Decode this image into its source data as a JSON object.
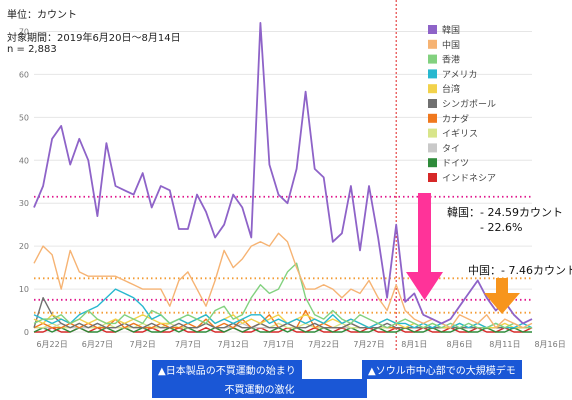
{
  "header": {
    "unit": "単位：カウント",
    "period": "対象期間：2019年6月20日〜8月14日",
    "n": "n = 2,883"
  },
  "notes": {
    "boycott_start": "▲日本製品の不買運動の始まり",
    "boycott_intensify": "不買運動の激化",
    "seoul_demo": "▲ソウル市中心部での大規模デモ"
  },
  "annotations": {
    "korea_drop": "韓国：- 24.59カウント",
    "korea_pct": "- 22.6%",
    "china_drop": "中国：- 7.46カウント"
  },
  "chart_data": {
    "type": "line",
    "x": [
      "2019-06-20",
      "2019-06-21",
      "2019-06-22",
      "2019-06-23",
      "2019-06-24",
      "2019-06-25",
      "2019-06-26",
      "2019-06-27",
      "2019-06-28",
      "2019-06-29",
      "2019-06-30",
      "2019-07-01",
      "2019-07-02",
      "2019-07-03",
      "2019-07-04",
      "2019-07-05",
      "2019-07-06",
      "2019-07-07",
      "2019-07-08",
      "2019-07-09",
      "2019-07-10",
      "2019-07-11",
      "2019-07-12",
      "2019-07-13",
      "2019-07-14",
      "2019-07-15",
      "2019-07-16",
      "2019-07-17",
      "2019-07-18",
      "2019-07-19",
      "2019-07-20",
      "2019-07-21",
      "2019-07-22",
      "2019-07-23",
      "2019-07-24",
      "2019-07-25",
      "2019-07-26",
      "2019-07-27",
      "2019-07-28",
      "2019-07-29",
      "2019-07-30",
      "2019-07-31",
      "2019-08-01",
      "2019-08-02",
      "2019-08-03",
      "2019-08-04",
      "2019-08-05",
      "2019-08-06",
      "2019-08-07",
      "2019-08-08",
      "2019-08-09",
      "2019-08-10",
      "2019-08-11",
      "2019-08-12",
      "2019-08-13",
      "2019-08-14"
    ],
    "x_ticks": [
      "6月22日",
      "6月27日",
      "7月2日",
      "7月7日",
      "7月12日",
      "7月17日",
      "7月22日",
      "7月27日",
      "8月1日",
      "8月6日",
      "8月11日",
      "8月16日"
    ],
    "ylim": [
      0,
      75
    ],
    "y_ticks": [
      0,
      10,
      20,
      30,
      40,
      50,
      60,
      70
    ],
    "grid": true,
    "legend_position": "top-right",
    "series": [
      {
        "name": "韓国",
        "color": "#8e63c8",
        "values": [
          29,
          34,
          45,
          48,
          39,
          45,
          40,
          27,
          44,
          34,
          33,
          32,
          37,
          29,
          34,
          33,
          24,
          24,
          32,
          28,
          22,
          25,
          32,
          29,
          22,
          72,
          39,
          32,
          30,
          38,
          56,
          38,
          36,
          21,
          23,
          34,
          19,
          34,
          22,
          8,
          25,
          7,
          9,
          4,
          3,
          2,
          3,
          6,
          9,
          12,
          8,
          5,
          7,
          4,
          2,
          3
        ]
      },
      {
        "name": "中国",
        "color": "#f6b373",
        "values": [
          16,
          20,
          18,
          10,
          19,
          14,
          13,
          13,
          13,
          13,
          12,
          11,
          10,
          10,
          10,
          6,
          12,
          14,
          10,
          6,
          12,
          19,
          15,
          17,
          20,
          21,
          20,
          23,
          21,
          15,
          10,
          10,
          11,
          10,
          8,
          10,
          9,
          12,
          8,
          5,
          11,
          5,
          3,
          2,
          3,
          2,
          1,
          4,
          3,
          2,
          4,
          1,
          3,
          2,
          1,
          2
        ]
      },
      {
        "name": "香港",
        "color": "#82d17f",
        "values": [
          2,
          3,
          3,
          4,
          2,
          3,
          5,
          3,
          2,
          2,
          4,
          3,
          2,
          5,
          4,
          2,
          3,
          4,
          3,
          2,
          5,
          6,
          3,
          4,
          8,
          11,
          9,
          10,
          14,
          16,
          8,
          4,
          3,
          5,
          3,
          2,
          4,
          3,
          2,
          1,
          2,
          3,
          2,
          1,
          2,
          1,
          2,
          1,
          2,
          1,
          1,
          2,
          1,
          2,
          1,
          1
        ]
      },
      {
        "name": "アメリカ",
        "color": "#27b8cf",
        "values": [
          4,
          3,
          2,
          3,
          2,
          4,
          5,
          6,
          8,
          10,
          9,
          8,
          6,
          3,
          4,
          2,
          3,
          2,
          3,
          4,
          2,
          3,
          2,
          3,
          4,
          4,
          2,
          3,
          2,
          3,
          2,
          3,
          2,
          4,
          2,
          3,
          2,
          1,
          2,
          3,
          2,
          2,
          1,
          2,
          1,
          2,
          1,
          2,
          1,
          2,
          1,
          2,
          1,
          1,
          2,
          1
        ]
      },
      {
        "name": "台湾",
        "color": "#f2d24b",
        "values": [
          3,
          2,
          4,
          3,
          2,
          3,
          2,
          3,
          2,
          3,
          2,
          3,
          4,
          3,
          2,
          2,
          3,
          2,
          3,
          4,
          2,
          3,
          4,
          2,
          3,
          2,
          3,
          4,
          2,
          3,
          4,
          3,
          2,
          3,
          2,
          3,
          2,
          1,
          2,
          3,
          2,
          1,
          2,
          1,
          2,
          1,
          1,
          2,
          1,
          2,
          1,
          1,
          2,
          1,
          1,
          1
        ]
      },
      {
        "name": "シンガポール",
        "color": "#707070",
        "values": [
          1,
          8,
          4,
          2,
          1,
          2,
          1,
          2,
          1,
          1,
          2,
          1,
          1,
          2,
          1,
          1,
          2,
          1,
          1,
          2,
          1,
          1,
          2,
          1,
          1,
          2,
          1,
          1,
          2,
          1,
          1,
          2,
          1,
          1,
          1,
          2,
          1,
          1,
          1,
          2,
          1,
          1,
          1,
          1,
          1,
          1,
          1,
          1,
          1,
          1,
          1,
          1,
          1,
          1,
          1,
          1
        ]
      },
      {
        "name": "カナダ",
        "color": "#f0781e",
        "values": [
          1,
          2,
          1,
          1,
          2,
          1,
          2,
          1,
          1,
          3,
          1,
          2,
          1,
          1,
          2,
          1,
          1,
          2,
          1,
          3,
          1,
          2,
          1,
          3,
          1,
          2,
          4,
          1,
          2,
          1,
          5,
          1,
          2,
          1,
          1,
          2,
          1,
          1,
          2,
          1,
          1,
          1,
          1,
          1,
          1,
          1,
          1,
          1,
          1,
          1,
          1,
          1,
          1,
          1,
          1,
          1
        ]
      },
      {
        "name": "イギリス",
        "color": "#d8e58a",
        "values": [
          1,
          1,
          2,
          1,
          1,
          2,
          1,
          1,
          2,
          1,
          1,
          1,
          2,
          1,
          1,
          2,
          1,
          1,
          1,
          2,
          1,
          1,
          2,
          1,
          1,
          2,
          1,
          2,
          1,
          1,
          2,
          1,
          1,
          1,
          2,
          1,
          1,
          1,
          1,
          1,
          1,
          1,
          1,
          1,
          1,
          1,
          1,
          1,
          1,
          1,
          1,
          1,
          1,
          1,
          1,
          1
        ]
      },
      {
        "name": "タイ",
        "color": "#c9c9c9",
        "values": [
          1,
          1,
          1,
          2,
          1,
          1,
          1,
          2,
          1,
          1,
          1,
          2,
          1,
          1,
          1,
          2,
          1,
          1,
          1,
          2,
          1,
          1,
          1,
          2,
          1,
          1,
          1,
          2,
          1,
          1,
          1,
          2,
          1,
          1,
          1,
          1,
          1,
          1,
          1,
          1,
          1,
          1,
          1,
          1,
          1,
          1,
          1,
          1,
          1,
          1,
          1,
          1,
          1,
          1,
          1,
          1
        ]
      },
      {
        "name": "ドイツ",
        "color": "#2e8b3a",
        "values": [
          0,
          1,
          0,
          1,
          0,
          1,
          0,
          0,
          1,
          0,
          1,
          0,
          1,
          0,
          0,
          1,
          0,
          1,
          0,
          0,
          1,
          0,
          1,
          0,
          1,
          0,
          0,
          1,
          0,
          1,
          0,
          0,
          1,
          0,
          0,
          1,
          0,
          0,
          1,
          0,
          0,
          1,
          0,
          0,
          1,
          0,
          0,
          1,
          0,
          0,
          1,
          0,
          0,
          1,
          0,
          0
        ]
      },
      {
        "name": "インドネシア",
        "color": "#d62828",
        "values": [
          0,
          0,
          1,
          0,
          0,
          1,
          0,
          1,
          0,
          0,
          1,
          0,
          0,
          1,
          0,
          0,
          1,
          0,
          0,
          1,
          0,
          0,
          1,
          0,
          0,
          1,
          0,
          0,
          1,
          0,
          0,
          1,
          0,
          0,
          1,
          0,
          0,
          1,
          0,
          0,
          1,
          0,
          0,
          1,
          0,
          0,
          1,
          0,
          0,
          1,
          0,
          0,
          1,
          0,
          0,
          1
        ]
      }
    ],
    "reference_lines": [
      {
        "y": 31.5,
        "color": "#e0168c"
      },
      {
        "y": 12.5,
        "color": "#f39c35"
      },
      {
        "y": 7.5,
        "color": "#e0168c"
      },
      {
        "y": 4.5,
        "color": "#f39c35"
      }
    ],
    "event_line": {
      "x": "2019-07-30",
      "color": "#e02020"
    }
  }
}
